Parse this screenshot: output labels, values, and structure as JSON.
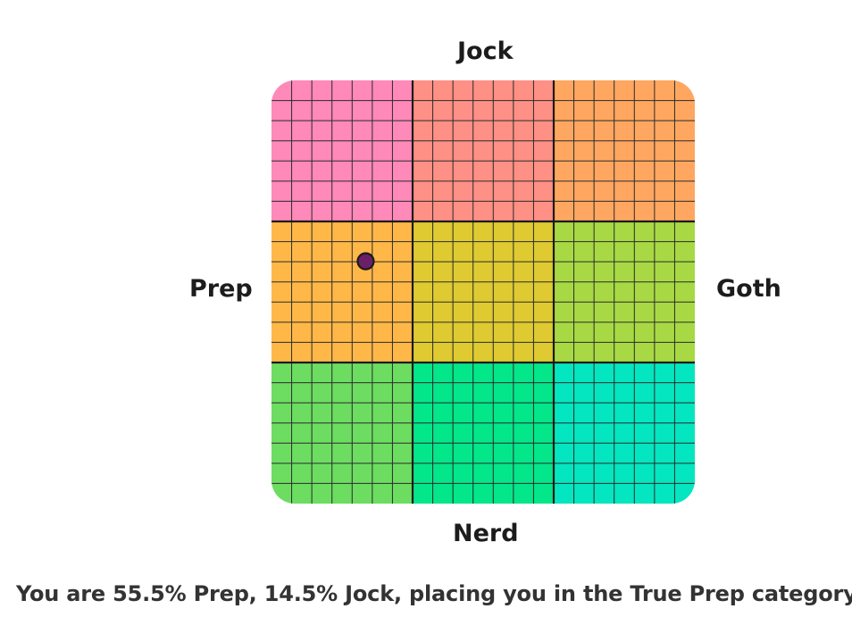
{
  "chart_data": {
    "type": "scatter",
    "title": "",
    "axes": {
      "top": "Jock",
      "bottom": "Nerd",
      "left": "Prep",
      "right": "Goth"
    },
    "x_axis": {
      "negative": "Prep",
      "positive": "Goth",
      "range": [
        -100,
        100
      ]
    },
    "y_axis": {
      "negative": "Nerd",
      "positive": "Jock",
      "range": [
        -100,
        100
      ]
    },
    "grid": {
      "regions_per_side": 3,
      "cells_per_region": 7,
      "minor_grid": true
    },
    "regions": [
      [
        "#ff89b8",
        "#ff9085",
        "#ffa760"
      ],
      [
        "#ffb848",
        "#dfca32",
        "#a8d944"
      ],
      [
        "#6ddd62",
        "#04e68a",
        "#04e6c0"
      ]
    ],
    "points": [
      {
        "x": -55.5,
        "y": 14.5,
        "color": "#6b1f66"
      }
    ]
  },
  "result": {
    "text": "You are 55.5% Prep, 14.5% Jock, placing you in the True Prep category."
  }
}
